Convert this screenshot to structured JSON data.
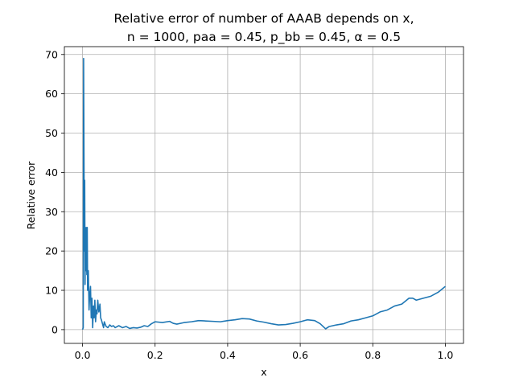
{
  "chart_data": {
    "type": "line",
    "title_line1": "Relative error of number of AAAB depends on x,",
    "title_line2": "n = 1000, paa = 0.45, p_bb = 0.45, α = 0.5",
    "xlabel": "x",
    "ylabel": "Relative error",
    "xlim": [
      -0.05,
      1.05
    ],
    "ylim": [
      -3.5,
      72
    ],
    "xticks": [
      0.0,
      0.2,
      0.4,
      0.6,
      0.8,
      1.0
    ],
    "xtick_labels": [
      "0.0",
      "0.2",
      "0.4",
      "0.6",
      "0.8",
      "1.0"
    ],
    "yticks": [
      0,
      10,
      20,
      30,
      40,
      50,
      60,
      70
    ],
    "ytick_labels": [
      "0",
      "10",
      "20",
      "30",
      "40",
      "50",
      "60",
      "70"
    ],
    "grid": true,
    "color": "#1f77b4",
    "series": [
      {
        "x": [
          0.0,
          0.002,
          0.003,
          0.004,
          0.005,
          0.006,
          0.007,
          0.008,
          0.009,
          0.01,
          0.011,
          0.012,
          0.013,
          0.014,
          0.016,
          0.018,
          0.02,
          0.022,
          0.024,
          0.026,
          0.028,
          0.03,
          0.032,
          0.034,
          0.036,
          0.038,
          0.04,
          0.042,
          0.045,
          0.048,
          0.05,
          0.052,
          0.055,
          0.058,
          0.06,
          0.062,
          0.065,
          0.07,
          0.075,
          0.08,
          0.085,
          0.09,
          0.1,
          0.11,
          0.12,
          0.13,
          0.14,
          0.15,
          0.16,
          0.17,
          0.18,
          0.19,
          0.2,
          0.22,
          0.24,
          0.25,
          0.26,
          0.28,
          0.3,
          0.32,
          0.34,
          0.36,
          0.38,
          0.4,
          0.42,
          0.44,
          0.46,
          0.48,
          0.5,
          0.52,
          0.54,
          0.56,
          0.58,
          0.6,
          0.62,
          0.64,
          0.655,
          0.67,
          0.68,
          0.7,
          0.72,
          0.74,
          0.76,
          0.78,
          0.8,
          0.82,
          0.84,
          0.86,
          0.88,
          0.9,
          0.91,
          0.92,
          0.94,
          0.96,
          0.98,
          1.0
        ],
        "y": [
          0.0,
          0.5,
          69.0,
          45.0,
          20.0,
          38.0,
          11.5,
          22.0,
          15.0,
          26.0,
          18.0,
          14.0,
          26.0,
          10.0,
          15.0,
          5.0,
          9.0,
          11.0,
          3.0,
          8.0,
          0.5,
          6.0,
          3.0,
          7.5,
          2.0,
          5.0,
          4.0,
          7.5,
          4.5,
          6.5,
          3.0,
          2.5,
          1.5,
          0.5,
          2.0,
          1.5,
          0.8,
          0.5,
          1.2,
          0.8,
          1.0,
          0.5,
          1.0,
          0.5,
          0.8,
          0.3,
          0.5,
          0.4,
          0.6,
          1.0,
          0.8,
          1.5,
          2.0,
          1.8,
          2.1,
          1.6,
          1.4,
          1.8,
          2.0,
          2.3,
          2.2,
          2.1,
          2.0,
          2.3,
          2.5,
          2.8,
          2.7,
          2.2,
          1.9,
          1.5,
          1.2,
          1.3,
          1.6,
          2.0,
          2.5,
          2.3,
          1.5,
          0.2,
          0.8,
          1.2,
          1.5,
          2.2,
          2.5,
          3.0,
          3.5,
          4.5,
          5.0,
          6.0,
          6.5,
          8.0,
          8.0,
          7.5,
          8.0,
          8.5,
          9.5,
          11.0
        ]
      }
    ]
  }
}
